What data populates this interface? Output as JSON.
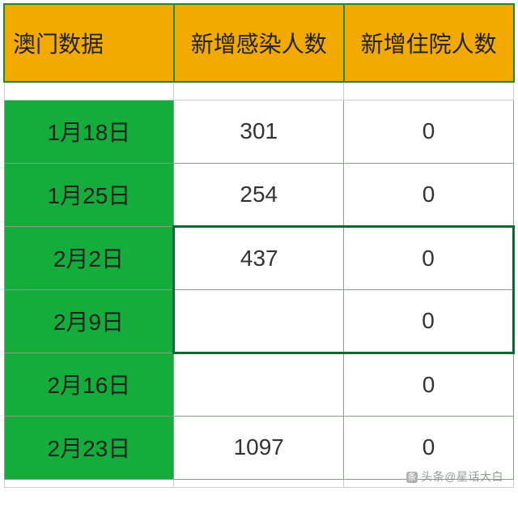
{
  "table": {
    "type": "table",
    "header_bg": "#f2a900",
    "header_text_color": "#222222",
    "header_border_color": "#1a8a3a",
    "date_bg": "#14ad3b",
    "date_text_color": "#222222",
    "cell_bg": "#ffffff",
    "cell_text_color": "#333333",
    "grid_color": "#8aa08a",
    "selection_color": "#0a6b2d",
    "font_size_pt": 21,
    "columns": [
      {
        "label": "澳门数据",
        "align": "left"
      },
      {
        "label": "新增感染人数",
        "align": "center"
      },
      {
        "label": "新增住院人数",
        "align": "center"
      }
    ],
    "rows": [
      {
        "date": "1月18日",
        "infections": "301",
        "hospitalized": "0"
      },
      {
        "date": "1月25日",
        "infections": "254",
        "hospitalized": "0"
      },
      {
        "date": "2月2日",
        "infections": "437",
        "hospitalized": "0"
      },
      {
        "date": "2月9日",
        "infections": "",
        "hospitalized": "0"
      },
      {
        "date": "2月16日",
        "infections": "",
        "hospitalized": "0"
      },
      {
        "date": "2月23日",
        "infections": "1097",
        "hospitalized": "0"
      }
    ]
  },
  "watermark": {
    "prefix": "头条",
    "text": "@星话大白",
    "color": "#808080"
  }
}
